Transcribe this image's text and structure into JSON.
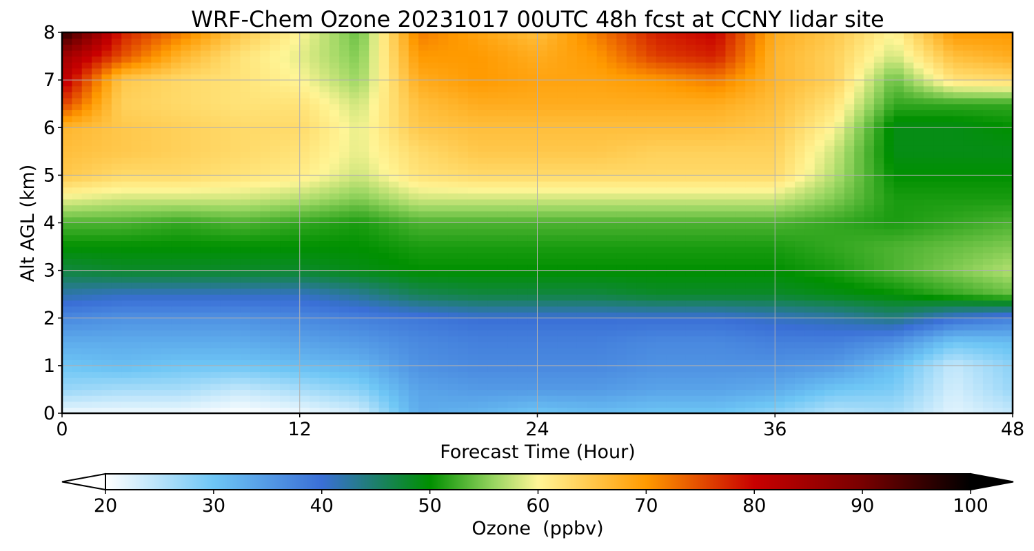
{
  "chart_data": {
    "type": "heatmap",
    "title": "WRF-Chem Ozone  20231017 00UTC 48h fcst at CCNY lidar site",
    "xlabel": "Forecast Time (Hour)",
    "ylabel": "Alt AGL (km)",
    "xlim": [
      0,
      48
    ],
    "ylim": [
      0,
      8
    ],
    "xticks": [
      "0",
      "12",
      "24",
      "36",
      "48"
    ],
    "yticks": [
      "0",
      "1",
      "2",
      "3",
      "4",
      "5",
      "6",
      "7",
      "8"
    ],
    "grid": true,
    "colorbar": {
      "label": "Ozone  (ppbv)",
      "range": [
        20,
        100
      ],
      "ticks": [
        "20",
        "30",
        "40",
        "50",
        "60",
        "70",
        "80",
        "90",
        "100"
      ],
      "extend": "both",
      "stops": [
        {
          "v": 20,
          "c": "#ffffff"
        },
        {
          "v": 30,
          "c": "#6ec6f5"
        },
        {
          "v": 40,
          "c": "#3a6fd6"
        },
        {
          "v": 50,
          "c": "#009000"
        },
        {
          "v": 56,
          "c": "#9ad662"
        },
        {
          "v": 60,
          "c": "#fff596"
        },
        {
          "v": 70,
          "c": "#ff9a00"
        },
        {
          "v": 80,
          "c": "#c80000"
        },
        {
          "v": 90,
          "c": "#780000"
        },
        {
          "v": 100,
          "c": "#000000"
        }
      ]
    },
    "x": [
      0,
      3,
      6,
      9,
      12,
      15,
      18,
      21,
      24,
      27,
      30,
      33,
      36,
      39,
      42,
      45,
      48
    ],
    "y": [
      0,
      0.5,
      1,
      1.5,
      2,
      2.5,
      3,
      3.5,
      4,
      4.5,
      5,
      5.5,
      6,
      6.5,
      7,
      7.5,
      8
    ],
    "z": [
      [
        21,
        21,
        21,
        20,
        21,
        23,
        33,
        32,
        30,
        31,
        30,
        30,
        28,
        25,
        26,
        22,
        24
      ],
      [
        27,
        26,
        26,
        24,
        26,
        28,
        34,
        35,
        35,
        35,
        34,
        34,
        33,
        30,
        29,
        23,
        27
      ],
      [
        30,
        31,
        30,
        30,
        31,
        32,
        36,
        37,
        37,
        37,
        36,
        36,
        36,
        35,
        31,
        24,
        28
      ],
      [
        33,
        33,
        33,
        33,
        34,
        35,
        37,
        38,
        38,
        38,
        37,
        37,
        38,
        38,
        36,
        30,
        31
      ],
      [
        37,
        36,
        36,
        36,
        37,
        38,
        39,
        40,
        40,
        40,
        40,
        40,
        41,
        42,
        44,
        40,
        38
      ],
      [
        42,
        41,
        41,
        41,
        41,
        43,
        46,
        47,
        47,
        47,
        48,
        48,
        48,
        49,
        50,
        52,
        54
      ],
      [
        47,
        48,
        48,
        48,
        48,
        49,
        50,
        50,
        50,
        50,
        50,
        50,
        50,
        51,
        53,
        55,
        57
      ],
      [
        50,
        50,
        50,
        50,
        50,
        50,
        51,
        51,
        51,
        51,
        51,
        51,
        51,
        52,
        53,
        54,
        55
      ],
      [
        53,
        53,
        52,
        53,
        52,
        51,
        53,
        53,
        53,
        53,
        53,
        53,
        53,
        52,
        51,
        52,
        53
      ],
      [
        59,
        58,
        58,
        58,
        57,
        55,
        58,
        58,
        58,
        58,
        58,
        58,
        58,
        55,
        51,
        51,
        51
      ],
      [
        65,
        63,
        63,
        62,
        61,
        58,
        62,
        63,
        63,
        63,
        63,
        63,
        63,
        57,
        50,
        50,
        50
      ],
      [
        66,
        65,
        64,
        63,
        62,
        59,
        63,
        65,
        65,
        65,
        64,
        64,
        64,
        58,
        49,
        49,
        49
      ],
      [
        67,
        65,
        64,
        63,
        63,
        59,
        65,
        66,
        66,
        66,
        66,
        66,
        65,
        60,
        49,
        49,
        50
      ],
      [
        76,
        64,
        63,
        62,
        62,
        58,
        66,
        68,
        68,
        68,
        68,
        68,
        66,
        62,
        52,
        52,
        52
      ],
      [
        82,
        65,
        63,
        62,
        60,
        56,
        68,
        70,
        69,
        69,
        70,
        72,
        67,
        64,
        54,
        62,
        63
      ],
      [
        85,
        75,
        67,
        62,
        59,
        55,
        70,
        70,
        68,
        70,
        76,
        78,
        67,
        64,
        58,
        66,
        68
      ],
      [
        97,
        78,
        72,
        65,
        60,
        54,
        72,
        69,
        66,
        72,
        78,
        80,
        68,
        65,
        60,
        70,
        70
      ]
    ]
  }
}
